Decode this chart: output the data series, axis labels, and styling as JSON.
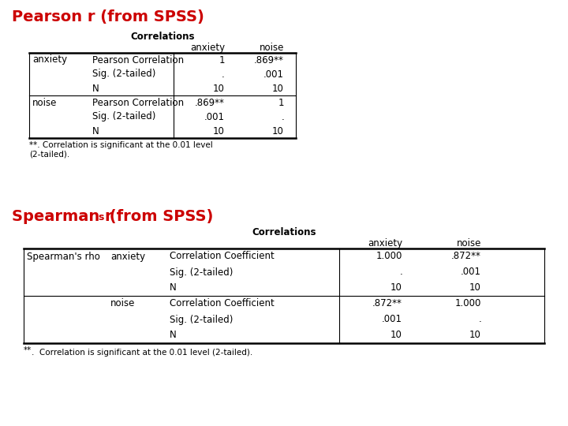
{
  "bg_color": "#ffffff",
  "title1": "Pearson r (from SPSS)",
  "title_color": "#cc0000",
  "title_fontsize": 14,
  "pearson_table_title": "Correlations",
  "pearson_footnote1": "**. Correlation is significant at the 0.01 level",
  "pearson_footnote2": "(2-tailed).",
  "pearson_rows": [
    [
      "anxiety",
      "Pearson Correlation",
      "1",
      ".869**"
    ],
    [
      "",
      "Sig. (2-tailed)",
      ".",
      ".001"
    ],
    [
      "",
      "N",
      "10",
      "10"
    ],
    [
      "noise",
      "Pearson Correlation",
      ".869**",
      "1"
    ],
    [
      "",
      "Sig. (2-tailed)",
      ".001",
      "."
    ],
    [
      "",
      "N",
      "10",
      "10"
    ]
  ],
  "spearman_table_title": "Correlations",
  "spearman_footnote": "**. Correlation is significant at the 0.01 level (2-tailed).",
  "spearman_rows": [
    [
      "Spearman's rho",
      "anxiety",
      "Correlation Coefficient",
      "1.000",
      ".872**"
    ],
    [
      "",
      "",
      "Sig. (2-tailed)",
      ".",
      ".001"
    ],
    [
      "",
      "",
      "N",
      "10",
      "10"
    ],
    [
      "",
      "noise",
      "Correlation Coefficient",
      ".872**",
      "1.000"
    ],
    [
      "",
      "",
      "Sig. (2-tailed)",
      ".001",
      "."
    ],
    [
      "",
      "",
      "N",
      "10",
      "10"
    ]
  ]
}
